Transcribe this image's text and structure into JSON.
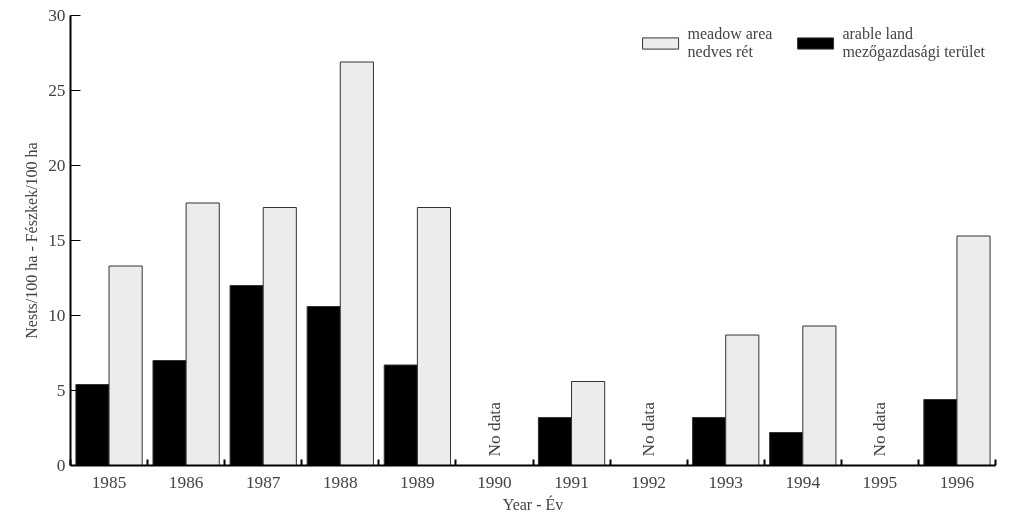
{
  "chart_data": {
    "type": "bar",
    "xlabel": "Year - Év",
    "ylabel": "Nests/100 ha - Fészkek/100 ha",
    "categories": [
      "1985",
      "1986",
      "1987",
      "1988",
      "1989",
      "1990",
      "1991",
      "1992",
      "1993",
      "1994",
      "1995",
      "1996"
    ],
    "series": [
      {
        "name": "arable land\nmezőgazdasági terület",
        "color": "#000000",
        "values": [
          5.4,
          7.0,
          12.0,
          10.6,
          6.7,
          null,
          3.2,
          null,
          3.2,
          2.2,
          null,
          4.4
        ]
      },
      {
        "name": "meadow area\nnedves rét",
        "color": "#ececec",
        "values": [
          13.3,
          17.5,
          17.2,
          26.9,
          17.2,
          null,
          5.6,
          null,
          8.7,
          9.3,
          null,
          15.3
        ]
      }
    ],
    "ylim": [
      0,
      30
    ],
    "yticks": [
      0,
      5,
      10,
      15,
      20,
      25,
      30
    ],
    "grid": false,
    "legend": "top right",
    "annotations": [
      "No data",
      "No data",
      "No data"
    ]
  }
}
